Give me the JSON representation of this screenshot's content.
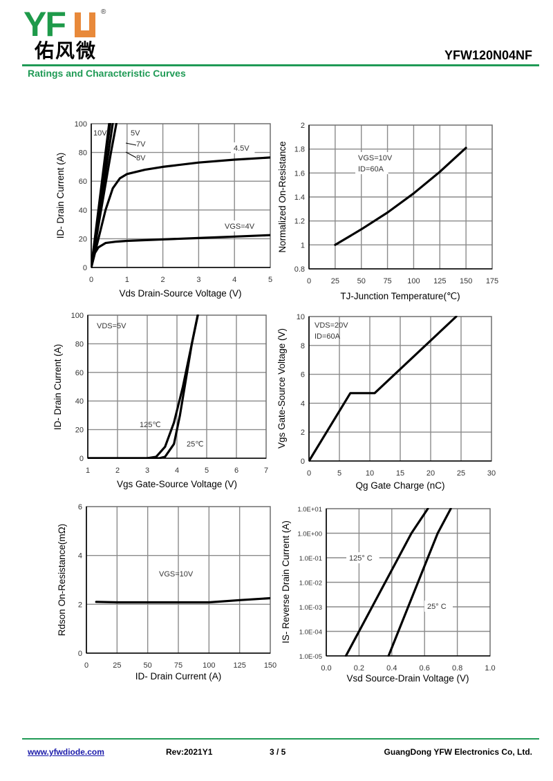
{
  "header": {
    "logo_text": "YFW",
    "logo_cn": "佑风微",
    "registered": "®",
    "part_number": "YFW120N04NF",
    "subtitle": "Ratings and Characteristic Curves"
  },
  "footer": {
    "website": "www.yfwdiode.com",
    "revision": "Rev:2021Y1",
    "page": "3 / 5",
    "company": "GuangDong YFW Electronics Co, Ltd."
  },
  "chart_data": [
    {
      "type": "line",
      "title": "",
      "xlabel": "Vds Drain-Source Voltage (V)",
      "ylabel": "ID- Drain Current (A)",
      "xlim": [
        0,
        5
      ],
      "ylim": [
        0,
        100
      ],
      "xticks": [
        "0",
        "1",
        "2",
        "3",
        "4",
        "5"
      ],
      "yticks": [
        "0",
        "20",
        "40",
        "60",
        "80",
        "100"
      ],
      "grid": true,
      "annotations": [
        "10V",
        "5V",
        "7V",
        "8V",
        "4.5V",
        "VGS=4V"
      ],
      "series": [
        {
          "name": "10V",
          "x": [
            0,
            0.4,
            0.5
          ],
          "y": [
            0,
            80,
            100
          ]
        },
        {
          "name": "8V",
          "x": [
            0,
            0.42,
            0.53
          ],
          "y": [
            0,
            80,
            100
          ]
        },
        {
          "name": "7V",
          "x": [
            0,
            0.48,
            0.6
          ],
          "y": [
            0,
            80,
            100
          ]
        },
        {
          "name": "5V",
          "x": [
            0,
            0.55,
            0.7
          ],
          "y": [
            0,
            80,
            100
          ]
        },
        {
          "name": "4.5V",
          "x": [
            0,
            0.2,
            0.4,
            0.6,
            0.8,
            1,
            1.5,
            2,
            3,
            4,
            5
          ],
          "y": [
            0,
            20,
            40,
            55,
            62,
            65,
            68,
            70,
            73,
            75,
            76.5
          ]
        },
        {
          "name": "VGS=4V",
          "x": [
            0,
            0.1,
            0.2,
            0.4,
            0.7,
            1,
            2,
            3,
            4,
            5
          ],
          "y": [
            0,
            10,
            14,
            17,
            18,
            18.5,
            19.5,
            20.5,
            21.5,
            22.5
          ]
        }
      ]
    },
    {
      "type": "line",
      "title": "",
      "xlabel": "TJ-Junction Temperature(℃)",
      "ylabel": "Normalized On-Resistance",
      "xlim": [
        0,
        175
      ],
      "ylim": [
        0.8,
        2
      ],
      "xticks": [
        "0",
        "25",
        "50",
        "75",
        "100",
        "125",
        "150",
        "175"
      ],
      "yticks": [
        "0.8",
        "1",
        "1.2",
        "1.4",
        "1.6",
        "1.8",
        "2"
      ],
      "grid": true,
      "annotations": [
        "VGS=10V",
        "ID=60A"
      ],
      "series": [
        {
          "name": "Rds(on)",
          "x": [
            25,
            50,
            75,
            100,
            125,
            150
          ],
          "y": [
            1.0,
            1.13,
            1.27,
            1.43,
            1.61,
            1.81
          ]
        }
      ]
    },
    {
      "type": "line",
      "title": "",
      "xlabel": "Vgs Gate-Source Voltage (V)",
      "ylabel": "ID- Drain Current (A)",
      "xlim": [
        1,
        7
      ],
      "ylim": [
        0,
        100
      ],
      "xticks": [
        "1",
        "2",
        "3",
        "4",
        "5",
        "6",
        "7"
      ],
      "yticks": [
        "0",
        "20",
        "40",
        "60",
        "80",
        "100"
      ],
      "grid": true,
      "annotations": [
        "VDS=5V",
        "125℃",
        "25℃"
      ],
      "series": [
        {
          "name": "125℃",
          "x": [
            1,
            3,
            3.3,
            3.6,
            3.9,
            4.2,
            4.5,
            4.7
          ],
          "y": [
            0,
            0,
            1,
            8,
            25,
            50,
            80,
            100
          ]
        },
        {
          "name": "25℃",
          "x": [
            1,
            3.4,
            3.6,
            3.9,
            4.1,
            4.3,
            4.5,
            4.7
          ],
          "y": [
            0,
            0,
            1,
            10,
            30,
            55,
            80,
            100
          ]
        }
      ]
    },
    {
      "type": "line",
      "title": "",
      "xlabel": "Qg Gate Charge (nC)",
      "ylabel": "Vgs Gate-Source Voltage (V)",
      "xlim": [
        0,
        30
      ],
      "ylim": [
        0,
        10
      ],
      "xticks": [
        "0",
        "5",
        "10",
        "15",
        "20",
        "25",
        "30"
      ],
      "yticks": [
        "0",
        "2",
        "4",
        "6",
        "8",
        "10"
      ],
      "grid": true,
      "annotations": [
        "VDS=20V",
        "ID=60A"
      ],
      "series": [
        {
          "name": "Vgs",
          "x": [
            0,
            6.8,
            10.8,
            24.2
          ],
          "y": [
            0,
            4.7,
            4.7,
            10
          ]
        }
      ]
    },
    {
      "type": "line",
      "title": "",
      "xlabel": "ID- Drain Current (A)",
      "ylabel": "Rdson On-Resistance(mΩ)",
      "xlim": [
        0,
        150
      ],
      "ylim": [
        0,
        6
      ],
      "xticks": [
        "0",
        "25",
        "50",
        "75",
        "100",
        "125",
        "150"
      ],
      "yticks": [
        "0",
        "2",
        "4",
        "6"
      ],
      "grid": true,
      "annotations": [
        "VGS=10V"
      ],
      "series": [
        {
          "name": "VGS=10V",
          "x": [
            8,
            25,
            50,
            75,
            100,
            125,
            150
          ],
          "y": [
            2.1,
            2.08,
            2.08,
            2.08,
            2.08,
            2.17,
            2.25
          ]
        }
      ]
    },
    {
      "type": "line",
      "title": "",
      "xlabel": "Vsd Source-Drain Voltage (V)",
      "ylabel": "IS- Reverse Drain Current (A)",
      "xlim": [
        0,
        1.0
      ],
      "ylim": [
        -5,
        1
      ],
      "yscale": "log",
      "xticks": [
        "0.0",
        "0.2",
        "0.4",
        "0.6",
        "0.8",
        "1.0"
      ],
      "yticks": [
        "1.0E-05",
        "1.0E-04",
        "1.0E-03",
        "1.0E-02",
        "1.0E-01",
        "1.0E+00",
        "1.0E+01"
      ],
      "grid": true,
      "annotations": [
        "125° C",
        "25° C"
      ],
      "series": [
        {
          "name": "125° C",
          "x": [
            0.12,
            0.2,
            0.36,
            0.44,
            0.52,
            0.62
          ],
          "y": [
            -5,
            -4,
            -2,
            -1,
            0,
            1
          ]
        },
        {
          "name": "25° C",
          "x": [
            0.38,
            0.44,
            0.56,
            0.62,
            0.68,
            0.76
          ],
          "y": [
            -5,
            -4,
            -2,
            -1,
            0,
            1
          ]
        }
      ]
    }
  ]
}
